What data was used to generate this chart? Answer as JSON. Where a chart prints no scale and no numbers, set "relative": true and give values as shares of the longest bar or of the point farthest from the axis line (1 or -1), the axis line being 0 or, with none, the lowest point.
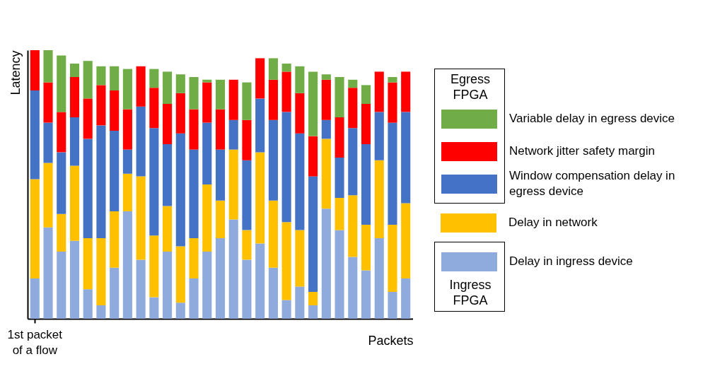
{
  "chart_data": {
    "type": "bar",
    "stacked": true,
    "relative": true,
    "xlabel": "Packets",
    "ylabel": "Latency",
    "legend": "right",
    "grid": false,
    "annotations": [
      "Egress FPGA",
      "Ingress FPGA"
    ],
    "categories": [
      "1st packet of a flow",
      null,
      null,
      null,
      null,
      null,
      null,
      null,
      null,
      null,
      null,
      null,
      null,
      null,
      null,
      null,
      null,
      null,
      null,
      null,
      null,
      null,
      null,
      null,
      null,
      null,
      null,
      null,
      null
    ],
    "series": [
      {
        "name": "Delay in ingress device",
        "color": "#8faadc",
        "values": [
          0.15,
          0.34,
          0.25,
          0.29,
          0.11,
          0.05,
          0.19,
          0.4,
          0.22,
          0.08,
          0.25,
          0.06,
          0.15,
          0.25,
          0.3,
          0.37,
          0.22,
          0.28,
          0.19,
          0.07,
          0.12,
          0.05,
          0.41,
          0.33,
          0.23,
          0.18,
          0.3,
          0.1,
          0.15
        ]
      },
      {
        "name": "Delay in network",
        "color": "#ffc000",
        "values": [
          0.37,
          0.24,
          0.14,
          0.28,
          0.19,
          0.25,
          0.21,
          0.14,
          0.31,
          0.23,
          0.17,
          0.21,
          0.15,
          0.25,
          0.14,
          0.26,
          0.11,
          0.34,
          0.25,
          0.29,
          0.21,
          0.05,
          0.26,
          0.12,
          0.23,
          0.17,
          0.29,
          0.25,
          0.28
        ]
      },
      {
        "name": "Window compensation delay in egress device",
        "color": "#4472c4",
        "values": [
          0.33,
          0.15,
          0.23,
          0.18,
          0.37,
          0.42,
          0.3,
          0.09,
          0.26,
          0.4,
          0.23,
          0.42,
          0.33,
          0.23,
          0.19,
          0.11,
          0.26,
          0.2,
          0.3,
          0.41,
          0.36,
          0.43,
          0.07,
          0.15,
          0.25,
          0.3,
          0.18,
          0.38,
          0.34
        ]
      },
      {
        "name": "Network jitter safety margin",
        "color": "#ff0000",
        "values": [
          0.15,
          0.15,
          0.15,
          0.15,
          0.15,
          0.15,
          0.15,
          0.15,
          0.15,
          0.15,
          0.15,
          0.15,
          0.15,
          0.15,
          0.15,
          0.15,
          0.15,
          0.15,
          0.15,
          0.15,
          0.15,
          0.15,
          0.15,
          0.15,
          0.15,
          0.15,
          0.15,
          0.15,
          0.15
        ]
      },
      {
        "name": "Variable delay in egress device",
        "color": "#70ad47",
        "values": [
          0,
          0.12,
          0.21,
          0.05,
          0.14,
          0.07,
          0.09,
          0.15,
          0,
          0.07,
          0.12,
          0.07,
          0.12,
          0.01,
          0.11,
          0,
          0.14,
          0,
          0.08,
          0.03,
          0.1,
          0.24,
          0.02,
          0.15,
          0.03,
          0.07,
          0,
          0.02,
          0
        ]
      }
    ]
  }
}
